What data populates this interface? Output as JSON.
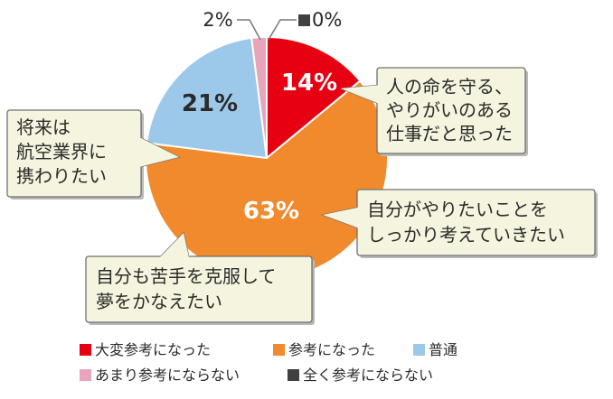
{
  "chart_data": {
    "type": "pie",
    "categories": [
      "大変参考になった",
      "参考になった",
      "普通",
      "あまり参考にならない",
      "全く参考にならない"
    ],
    "values": [
      14,
      63,
      21,
      2,
      0
    ],
    "value_labels": [
      "14%",
      "63%",
      "21%",
      "2%",
      "0%"
    ],
    "colors": [
      "#e60012",
      "#f08a2c",
      "#9cc8ea",
      "#e8a4bb",
      "#404040"
    ],
    "start": "12 o'clock",
    "direction": "clockwise",
    "legend": "bottom-left",
    "callouts": [
      {
        "lines": [
          "人の命を守る、",
          "やりがいのある",
          "仕事だと思った"
        ]
      },
      {
        "lines": [
          "将来は",
          "航空業界に",
          "携わりたい"
        ]
      },
      {
        "lines": [
          "自分がやりたいことを",
          "しっかり考えていきたい"
        ]
      },
      {
        "lines": [
          "自分も苦手を克服して",
          "夢をかなえたい"
        ]
      }
    ]
  }
}
